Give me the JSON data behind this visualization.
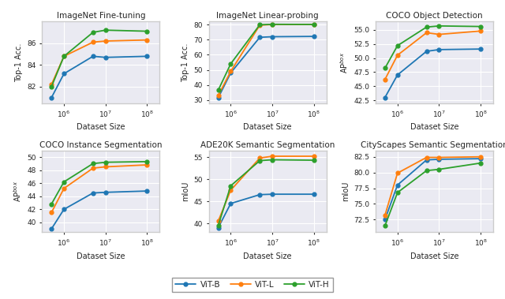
{
  "x_values": [
    500000.0,
    1000000.0,
    5000000.0,
    10000000.0,
    100000000.0
  ],
  "plots": [
    {
      "title": "ImageNet Fine-tuning",
      "ylabel": "Top-1 Acc.",
      "ylim": [
        80.5,
        88.0
      ],
      "yticks": [
        82,
        84,
        86
      ],
      "series": {
        "ViT-B": [
          81.0,
          83.2,
          84.8,
          84.7,
          84.8
        ],
        "ViT-L": [
          82.2,
          84.8,
          86.1,
          86.2,
          86.3
        ],
        "ViT-H": [
          82.0,
          84.8,
          87.0,
          87.2,
          87.1
        ]
      }
    },
    {
      "title": "ImageNet Linear-probing",
      "ylabel": "Top-1 Acc.",
      "ylim": [
        28,
        82
      ],
      "yticks": [
        30,
        40,
        50,
        60,
        70,
        80
      ],
      "series": {
        "ViT-B": [
          31.5,
          48.0,
          71.5,
          71.9,
          72.1
        ],
        "ViT-L": [
          33.0,
          49.0,
          79.5,
          80.0,
          80.0
        ],
        "ViT-H": [
          36.5,
          54.0,
          79.8,
          80.1,
          80.0
        ]
      }
    },
    {
      "title": "COCO Object Detection",
      "ylabel": "AP$^{box}$",
      "ylim": [
        42.0,
        56.5
      ],
      "yticks": [
        42.5,
        45.0,
        47.5,
        50.0,
        52.5,
        55.0
      ],
      "series": {
        "ViT-B": [
          43.0,
          47.0,
          51.2,
          51.5,
          51.6
        ],
        "ViT-L": [
          46.2,
          50.5,
          54.5,
          54.2,
          54.8
        ],
        "ViT-H": [
          48.2,
          52.2,
          55.5,
          55.7,
          55.6
        ]
      }
    },
    {
      "title": "COCO Instance Segmentation",
      "ylabel": "AP$^{box}$",
      "ylim": [
        38.5,
        51.0
      ],
      "yticks": [
        40,
        42,
        44,
        46,
        48,
        50
      ],
      "series": {
        "ViT-B": [
          39.0,
          42.0,
          44.5,
          44.6,
          44.8
        ],
        "ViT-L": [
          41.5,
          45.2,
          48.3,
          48.5,
          48.8
        ],
        "ViT-H": [
          42.8,
          46.2,
          49.0,
          49.2,
          49.3
        ]
      }
    },
    {
      "title": "ADE20K Semantic Segmentation",
      "ylabel": "mIoU",
      "ylim": [
        38.0,
        56.5
      ],
      "yticks": [
        40,
        45,
        50,
        55
      ],
      "series": {
        "ViT-B": [
          39.0,
          44.5,
          46.5,
          46.6,
          46.6
        ],
        "ViT-L": [
          40.5,
          47.5,
          54.8,
          55.2,
          55.2
        ],
        "ViT-H": [
          39.5,
          48.5,
          54.2,
          54.4,
          54.3
        ]
      }
    },
    {
      "title": "CityScapes Semantic Segmentation",
      "ylabel": "mIoU",
      "ylim": [
        70.5,
        83.5
      ],
      "yticks": [
        72.5,
        75.0,
        77.5,
        80.0,
        82.5
      ],
      "series": {
        "ViT-B": [
          72.5,
          78.0,
          82.0,
          82.1,
          82.2
        ],
        "ViT-L": [
          73.2,
          79.9,
          82.4,
          82.4,
          82.5
        ],
        "ViT-H": [
          71.5,
          76.8,
          80.3,
          80.5,
          81.5
        ]
      }
    }
  ],
  "colors": {
    "ViT-B": "#1f77b4",
    "ViT-L": "#ff7f0e",
    "ViT-H": "#2ca02c"
  },
  "marker": "o",
  "linewidth": 1.3,
  "markersize": 3.5,
  "legend_labels": [
    "ViT-B",
    "ViT-L",
    "ViT-H"
  ],
  "background_color": "#eaeaf2",
  "grid_color": "white",
  "figure_facecolor": "white"
}
